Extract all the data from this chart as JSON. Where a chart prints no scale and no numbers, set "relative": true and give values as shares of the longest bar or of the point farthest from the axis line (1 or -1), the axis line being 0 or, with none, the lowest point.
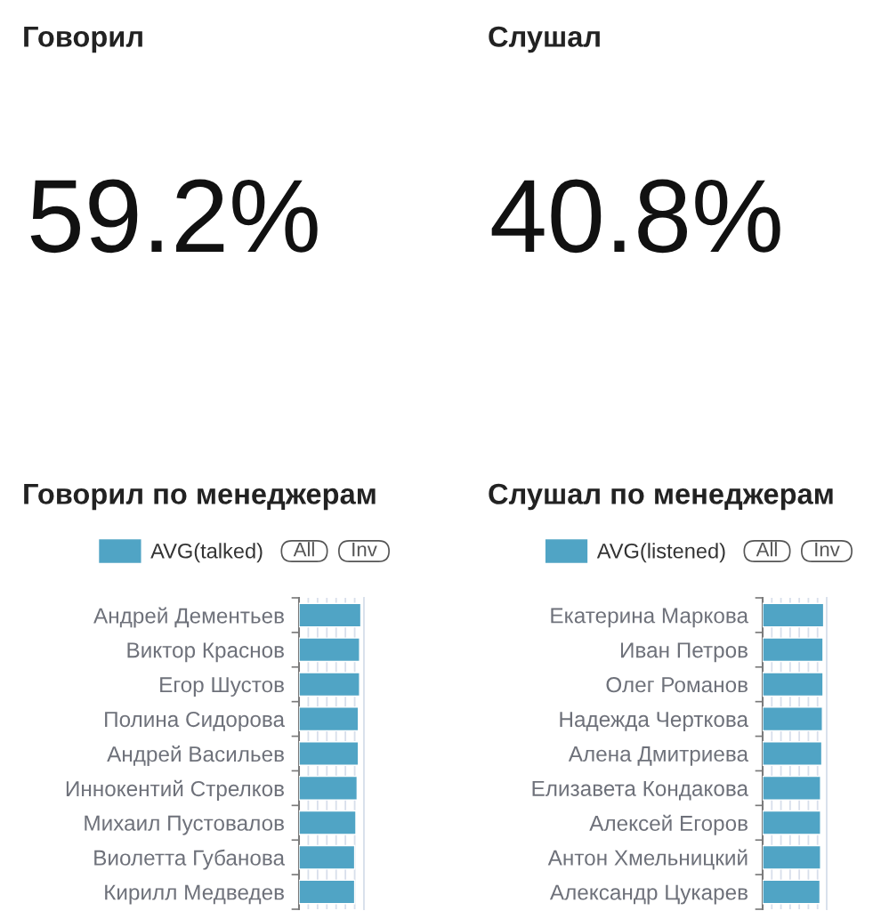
{
  "chart_data": [
    {
      "type": "other",
      "title": "Говорил",
      "annotations": [
        "59.2%"
      ]
    },
    {
      "type": "other",
      "title": "Слушал",
      "annotations": [
        "40.8%"
      ]
    },
    {
      "type": "bar",
      "orientation": "horizontal",
      "relative": true,
      "title": "Говорил по менеджерам",
      "categories": [
        "Андрей Дементьев",
        "Виктор Краснов",
        "Егор Шустов",
        "Полина Сидорова",
        "Андрей Васильев",
        "Иннокентий Стрелков",
        "Михаил Пустовалов",
        "Виолетта Губанова",
        "Кирилл Медведев"
      ],
      "series": [
        {
          "name": "AVG(talked)",
          "color": "#50a4c5",
          "values": [
            1,
            0.98,
            0.98,
            0.96,
            0.96,
            0.94,
            0.92,
            0.9,
            0.9
          ]
        }
      ],
      "legend": "top left",
      "grid": "x",
      "tick_labels": "y",
      "annotations": [
        "All",
        "Inv"
      ]
    },
    {
      "type": "bar",
      "orientation": "horizontal",
      "relative": true,
      "title": "Слушал по менеджерам",
      "categories": [
        "Екатерина Маркова",
        "Иван Петров",
        "Олег Романов",
        "Надежда Черткова",
        "Алена Дмитриева",
        "Елизавета Кондакова",
        "Алексей Егоров",
        "Антон Хмельницкий",
        "Александр Цукарев"
      ],
      "series": [
        {
          "name": "AVG(listened)",
          "color": "#50a4c5",
          "values": [
            1,
            0.99,
            0.99,
            0.98,
            0.97,
            0.95,
            0.95,
            0.95,
            0.94
          ]
        }
      ],
      "legend": "top left",
      "grid": "x",
      "tick_labels": "y",
      "annotations": [
        "All",
        "Inv"
      ]
    }
  ]
}
